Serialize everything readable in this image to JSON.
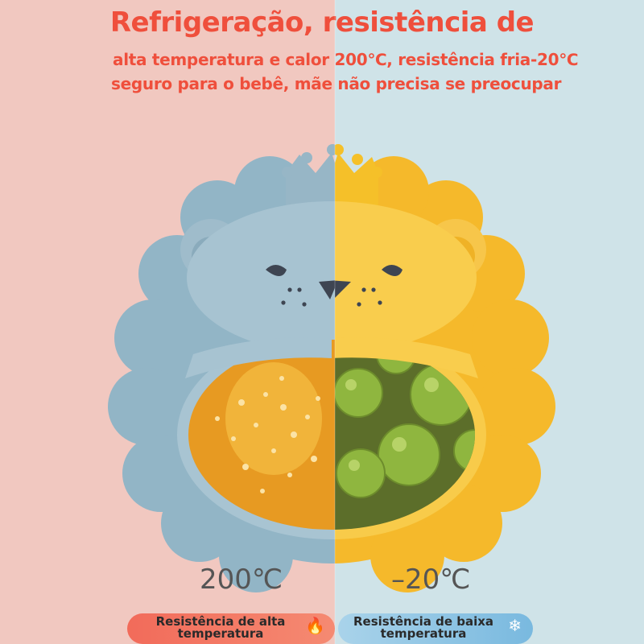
{
  "headline": {
    "title": "Refrigeração, resistência de",
    "line1": "alta temperatura e calor 200℃, resistência fria-20℃",
    "line2": "seguro para o bebê, mãe não precisa se preocupar"
  },
  "temps": {
    "hot": "200℃",
    "cold": "–20℃"
  },
  "badges": {
    "hot_label": "Resistência de alta temperatura",
    "cold_label": "Resistência de baixa temperatura",
    "hot_icon": "fire-icon",
    "cold_icon": "snowflake-icon"
  },
  "colors": {
    "accent": "#ef4f3c",
    "warm_bg": "#f1c8c0",
    "cool_bg": "#cfe3e8",
    "bowl_blue": "#8fb2c3",
    "bowl_yellow": "#f7c542"
  }
}
